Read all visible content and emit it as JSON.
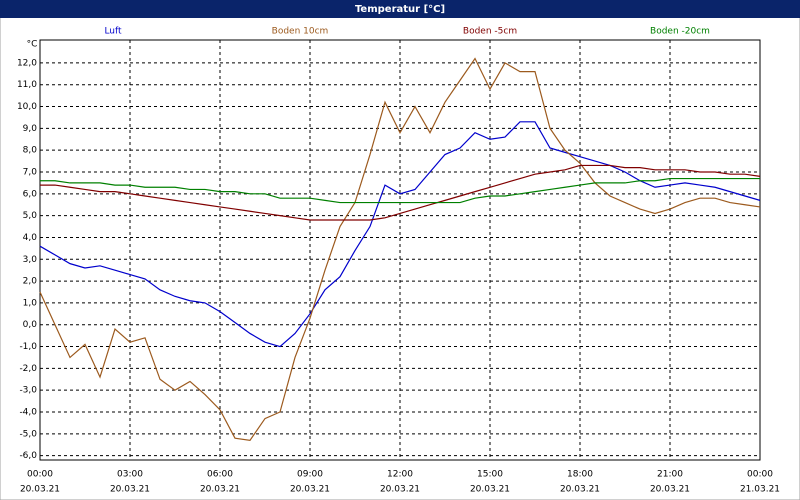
{
  "chart_data": {
    "type": "line",
    "title": "Temperatur [°C]",
    "y_unit": "°C",
    "x": [
      0,
      0.5,
      1,
      1.5,
      2,
      2.5,
      3,
      3.5,
      4,
      4.5,
      5,
      5.5,
      6,
      6.5,
      7,
      7.5,
      8,
      8.5,
      9,
      9.5,
      10,
      10.5,
      11,
      11.5,
      12,
      12.5,
      13,
      13.5,
      14,
      14.5,
      15,
      15.5,
      16,
      16.5,
      17,
      17.5,
      18,
      18.5,
      19,
      19.5,
      20,
      20.5,
      21,
      21.5,
      22,
      22.5,
      23,
      23.5,
      24
    ],
    "series": [
      {
        "name": "Luft",
        "color": "#0000cc",
        "values": [
          3.6,
          3.2,
          2.8,
          2.6,
          2.7,
          2.5,
          2.3,
          2.1,
          1.6,
          1.3,
          1.1,
          1.0,
          0.6,
          0.1,
          -0.4,
          -0.8,
          -1.0,
          -0.4,
          0.5,
          1.6,
          2.2,
          3.4,
          4.5,
          6.4,
          6.0,
          6.2,
          7.0,
          7.8,
          8.1,
          8.8,
          8.5,
          8.6,
          9.3,
          9.3,
          8.1,
          7.9,
          7.7,
          7.5,
          7.3,
          7.0,
          6.6,
          6.3,
          6.4,
          6.5,
          6.4,
          6.3,
          6.1,
          5.9,
          5.7
        ]
      },
      {
        "name": "Boden 10cm",
        "color": "#9c5a1e",
        "values": [
          1.5,
          0.0,
          -1.5,
          -0.9,
          -2.4,
          -0.2,
          -0.8,
          -0.6,
          -2.5,
          -3.0,
          -2.6,
          -3.2,
          -3.9,
          -5.2,
          -5.3,
          -4.3,
          -4.0,
          -1.5,
          0.3,
          2.5,
          4.5,
          5.6,
          7.8,
          10.2,
          8.8,
          10.0,
          8.8,
          10.2,
          11.2,
          12.2,
          10.8,
          12.0,
          11.6,
          11.6,
          9.0,
          8.0,
          7.4,
          6.5,
          5.9,
          5.6,
          5.3,
          5.1,
          5.3,
          5.6,
          5.8,
          5.8,
          5.6,
          5.5,
          5.4
        ]
      },
      {
        "name": "Boden -5cm",
        "color": "#800000",
        "values": [
          6.4,
          6.4,
          6.3,
          6.2,
          6.1,
          6.1,
          6.0,
          5.9,
          5.8,
          5.7,
          5.6,
          5.5,
          5.4,
          5.3,
          5.2,
          5.1,
          5.0,
          4.9,
          4.8,
          4.8,
          4.8,
          4.8,
          4.8,
          4.9,
          5.1,
          5.3,
          5.5,
          5.7,
          5.9,
          6.1,
          6.3,
          6.5,
          6.7,
          6.9,
          7.0,
          7.1,
          7.3,
          7.3,
          7.3,
          7.2,
          7.2,
          7.1,
          7.1,
          7.1,
          7.0,
          7.0,
          6.9,
          6.9,
          6.8
        ]
      },
      {
        "name": "Boden -20cm",
        "color": "#008000",
        "values": [
          6.6,
          6.6,
          6.5,
          6.5,
          6.5,
          6.4,
          6.4,
          6.3,
          6.3,
          6.3,
          6.2,
          6.2,
          6.1,
          6.1,
          6.0,
          6.0,
          5.8,
          5.8,
          5.8,
          5.7,
          5.6,
          5.6,
          5.6,
          5.6,
          5.6,
          5.6,
          5.6,
          5.6,
          5.6,
          5.8,
          5.9,
          5.9,
          6.0,
          6.1,
          6.2,
          6.3,
          6.4,
          6.5,
          6.5,
          6.5,
          6.6,
          6.6,
          6.7,
          6.7,
          6.7,
          6.7,
          6.7,
          6.7,
          6.7
        ]
      }
    ],
    "xlim": [
      0,
      24
    ],
    "xticks": [
      {
        "value": 0,
        "label": "00:00"
      },
      {
        "value": 3,
        "label": "03:00"
      },
      {
        "value": 6,
        "label": "06:00"
      },
      {
        "value": 9,
        "label": "09:00"
      },
      {
        "value": 12,
        "label": "12:00"
      },
      {
        "value": 15,
        "label": "15:00"
      },
      {
        "value": 18,
        "label": "18:00"
      },
      {
        "value": 21,
        "label": "21:00"
      },
      {
        "value": 24,
        "label": "00:00"
      }
    ],
    "xtick_dates": [
      "20.03.21",
      "20.03.21",
      "20.03.21",
      "20.03.21",
      "20.03.21",
      "20.03.21",
      "20.03.21",
      "20.03.21",
      "21.03.21"
    ],
    "ylim": [
      -6.2,
      13.05
    ],
    "yticks": [
      {
        "value": -6,
        "label": "-6,0"
      },
      {
        "value": -5,
        "label": "-5,0"
      },
      {
        "value": -4,
        "label": "-4,0"
      },
      {
        "value": -3,
        "label": "-3,0"
      },
      {
        "value": -2,
        "label": "-2,0"
      },
      {
        "value": -1,
        "label": "-1,0"
      },
      {
        "value": 0,
        "label": "0,0"
      },
      {
        "value": 1,
        "label": "1,0"
      },
      {
        "value": 2,
        "label": "2,0"
      },
      {
        "value": 3,
        "label": "3,0"
      },
      {
        "value": 4,
        "label": "4,0"
      },
      {
        "value": 5,
        "label": "5,0"
      },
      {
        "value": 6,
        "label": "6,0"
      },
      {
        "value": 7,
        "label": "7,0"
      },
      {
        "value": 8,
        "label": "8,0"
      },
      {
        "value": 9,
        "label": "9,0"
      },
      {
        "value": 10,
        "label": "10,0"
      },
      {
        "value": 11,
        "label": "11,0"
      },
      {
        "value": 12,
        "label": "12,0"
      }
    ],
    "grid": true
  }
}
